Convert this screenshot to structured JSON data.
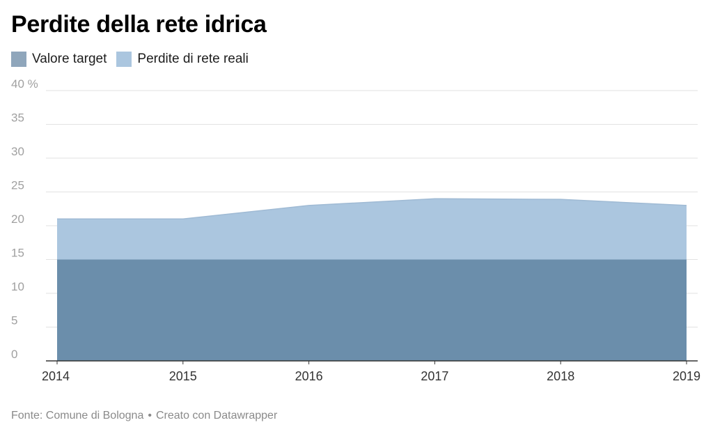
{
  "title": "Perdite della rete idrica",
  "legend": [
    {
      "label": "Valore target",
      "color": "#8fa6bb"
    },
    {
      "label": "Perdite di rete reali",
      "color": "#abc6df"
    }
  ],
  "footer": {
    "source": "Fonte: Comune di Bologna",
    "separator": "•",
    "credit": "Creato con Datawrapper"
  },
  "chart_data": {
    "type": "area",
    "x": [
      "2014",
      "2015",
      "2016",
      "2017",
      "2018",
      "2019"
    ],
    "series": [
      {
        "name": "Perdite di rete reali",
        "values": [
          21,
          21,
          23,
          24,
          23.9,
          23
        ],
        "color": "#abc6df"
      },
      {
        "name": "Valore target",
        "values": [
          15,
          15,
          15,
          15,
          15,
          15
        ],
        "color": "#6b8eab"
      }
    ],
    "ylim": [
      0,
      40
    ],
    "yticks": [
      0,
      5,
      10,
      15,
      20,
      25,
      30,
      35,
      40
    ],
    "ytick_labels": [
      "0",
      "5",
      "10",
      "15",
      "20",
      "25",
      "30",
      "35",
      "40 %"
    ],
    "grid": true,
    "legend_position": "top-left",
    "xlabel": "",
    "ylabel": ""
  }
}
